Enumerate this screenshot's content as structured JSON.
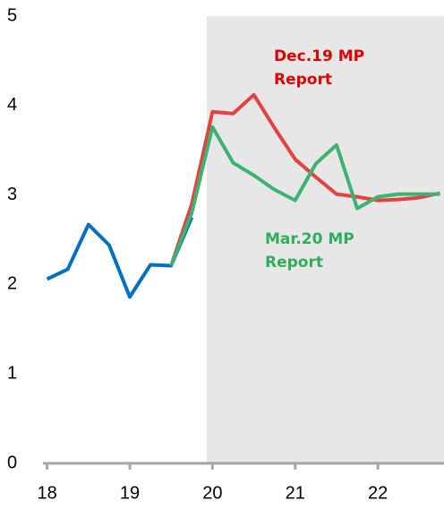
{
  "chart_data": {
    "type": "line",
    "xlim": [
      17.95,
      22.8
    ],
    "xticks": [
      18,
      19,
      20,
      21,
      22
    ],
    "ylim": [
      0,
      5
    ],
    "yticks": [
      0,
      1,
      2,
      3,
      4,
      5
    ],
    "shaded_x": [
      19.93,
      22.8
    ],
    "shade_color": "#e7e7e7",
    "axis_color": "#a6a6a6",
    "series": [
      {
        "color": "#0070c0",
        "x": [
          18,
          18.25,
          18.5,
          18.75,
          19,
          19.25,
          19.5,
          19.75
        ],
        "values": [
          2.06,
          2.17,
          2.67,
          2.44,
          1.86,
          2.22,
          2.21,
          2.75
        ]
      },
      {
        "color": "#e84040",
        "x": [
          19.5,
          19.75,
          20,
          20.25,
          20.5,
          20.75,
          21,
          21.25,
          21.5,
          21.75,
          22,
          22.25,
          22.5,
          22.75
        ],
        "values": [
          2.21,
          2.9,
          3.93,
          3.91,
          4.12,
          3.75,
          3.4,
          3.2,
          3.01,
          2.98,
          2.94,
          2.95,
          2.97,
          3.02
        ]
      },
      {
        "color": "#3cb371",
        "x": [
          19.5,
          19.75,
          20,
          20.25,
          20.5,
          20.75,
          21,
          21.25,
          21.5,
          21.75,
          22,
          22.25,
          22.5,
          22.75
        ],
        "values": [
          2.21,
          2.8,
          3.76,
          3.36,
          3.22,
          3.06,
          2.94,
          3.35,
          3.56,
          2.85,
          2.98,
          3.01,
          3.01,
          3.01
        ]
      }
    ],
    "annotations": [
      {
        "lines": [
          "Dec.19 MP",
          "Report"
        ],
        "color": "#e00000"
      },
      {
        "lines": [
          "Mar.20 MP",
          "Report"
        ],
        "color": "#2eae5a"
      }
    ]
  }
}
